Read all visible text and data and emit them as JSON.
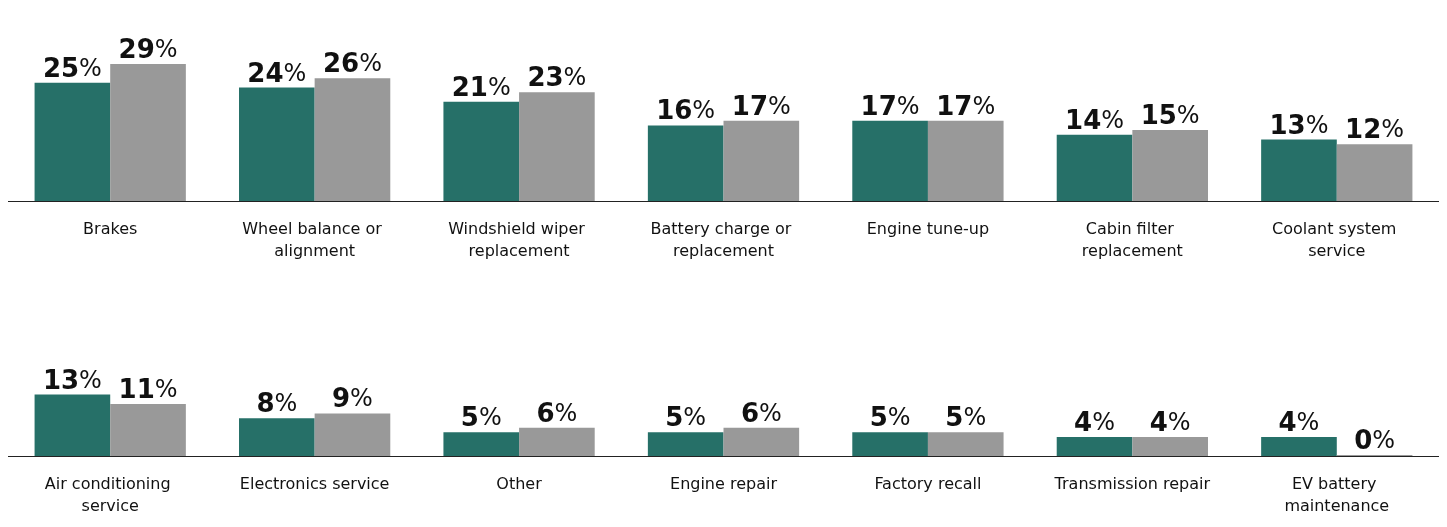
{
  "chart_data": [
    {
      "type": "bar",
      "categories": [
        "Brakes",
        "Wheel balance or alignment",
        "Windshield wiper replacement",
        "Battery charge or replacement",
        "Engine tune-up",
        "Cabin filter replacement",
        "Coolant system service"
      ],
      "series": [
        {
          "color": "#267068",
          "values": [
            25,
            24,
            21,
            16,
            17,
            14,
            13
          ],
          "value_labels": [
            "25%",
            "24%",
            "21%",
            "16%",
            "17%",
            "14%",
            "13%"
          ]
        },
        {
          "color": "#999999",
          "values": [
            29,
            26,
            23,
            17,
            17,
            15,
            12
          ],
          "value_labels": [
            "29%",
            "26%",
            "23%",
            "17%",
            "17%",
            "15%",
            "12%"
          ]
        }
      ],
      "grid": false
    },
    {
      "type": "bar",
      "categories": [
        "Air conditioning service",
        "Electronics service",
        "Other",
        "Engine repair",
        "Factory recall",
        "Transmission repair",
        "EV battery maintenance"
      ],
      "series": [
        {
          "color": "#267068",
          "values": [
            13,
            8,
            5,
            5,
            5,
            4,
            4
          ],
          "value_labels": [
            "13%",
            "8%",
            "5%",
            "5%",
            "5%",
            "4%",
            "4%"
          ]
        },
        {
          "color": "#999999",
          "values": [
            11,
            9,
            6,
            6,
            5,
            4,
            0
          ],
          "value_labels": [
            "11%",
            "9%",
            "6%",
            "6%",
            "5%",
            "4%",
            "0%"
          ]
        }
      ],
      "grid": false
    }
  ]
}
